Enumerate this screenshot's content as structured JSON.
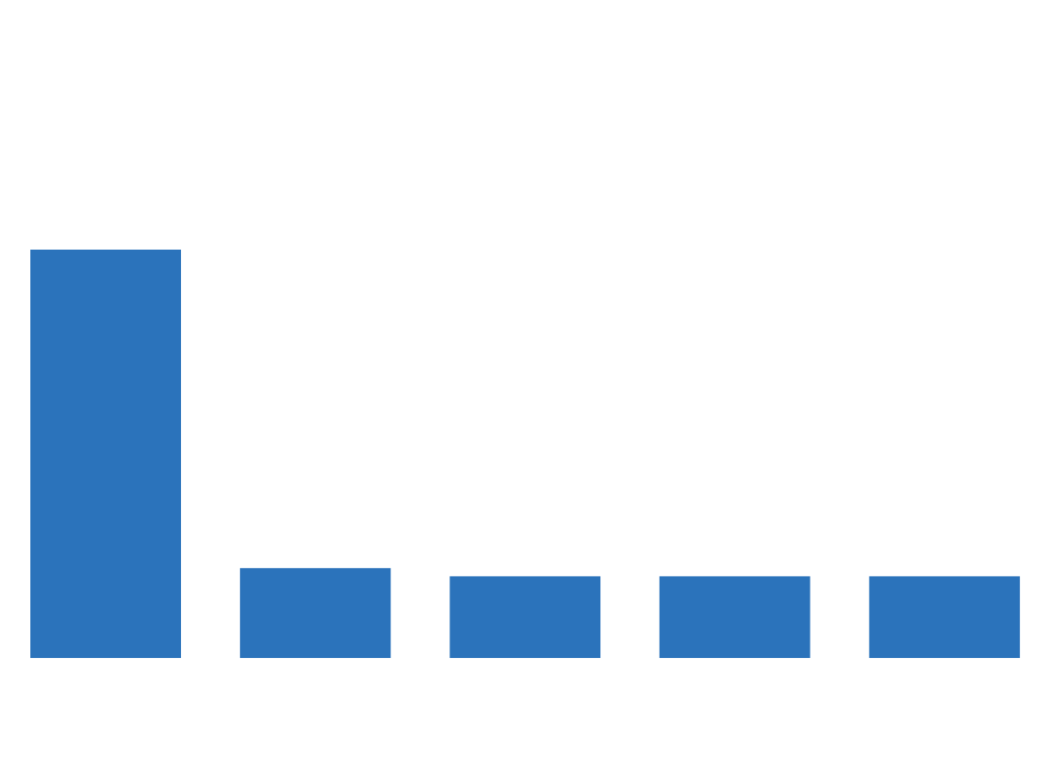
{
  "colors": {
    "bar": "#2B73BB",
    "background": "#FFFFFF"
  },
  "chart_data": {
    "type": "bar",
    "title": "",
    "xlabel": "",
    "ylabel": "",
    "categories": [
      "",
      "",
      "",
      "",
      ""
    ],
    "values": [
      100,
      22,
      20,
      20,
      20
    ],
    "ylim": [
      0,
      100
    ],
    "grid": false,
    "legend": "none"
  }
}
